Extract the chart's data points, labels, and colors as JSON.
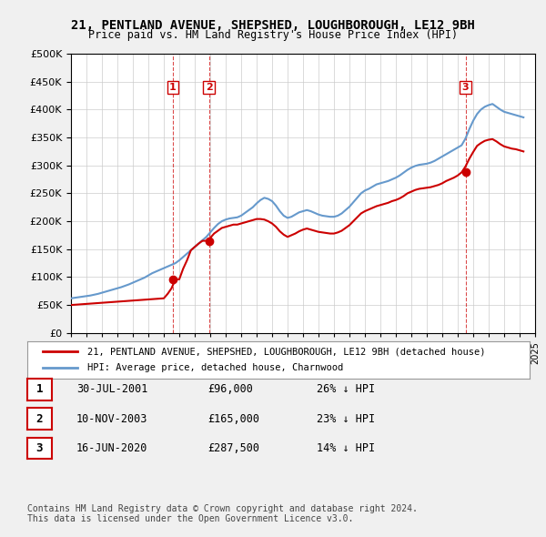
{
  "title": "21, PENTLAND AVENUE, SHEPSHED, LOUGHBOROUGH, LE12 9BH",
  "subtitle": "Price paid vs. HM Land Registry's House Price Index (HPI)",
  "ylim": [
    0,
    500000
  ],
  "yticks": [
    0,
    50000,
    100000,
    150000,
    200000,
    250000,
    300000,
    350000,
    400000,
    450000,
    500000
  ],
  "purchase_dates": [
    "2001-07-30",
    "2003-11-10",
    "2020-06-16"
  ],
  "purchase_prices": [
    96000,
    165000,
    287500
  ],
  "purchase_labels": [
    "1",
    "2",
    "3"
  ],
  "legend_line1": "21, PENTLAND AVENUE, SHEPSHED, LOUGHBOROUGH, LE12 9BH (detached house)",
  "legend_line2": "HPI: Average price, detached house, Charnwood",
  "table_data": [
    [
      "1",
      "30-JUL-2001",
      "£96,000",
      "26% ↓ HPI"
    ],
    [
      "2",
      "10-NOV-2003",
      "£165,000",
      "23% ↓ HPI"
    ],
    [
      "3",
      "16-JUN-2020",
      "£287,500",
      "14% ↓ HPI"
    ]
  ],
  "footer": "Contains HM Land Registry data © Crown copyright and database right 2024.\nThis data is licensed under the Open Government Licence v3.0.",
  "line_color_red": "#cc0000",
  "line_color_blue": "#6699cc",
  "background_color": "#f0f0f0",
  "plot_bg_color": "#ffffff",
  "grid_color": "#cccccc",
  "hpi_x": [
    1995,
    1995.25,
    1995.5,
    1995.75,
    1996,
    1996.25,
    1996.5,
    1996.75,
    1997,
    1997.25,
    1997.5,
    1997.75,
    1998,
    1998.25,
    1998.5,
    1998.75,
    1999,
    1999.25,
    1999.5,
    1999.75,
    2000,
    2000.25,
    2000.5,
    2000.75,
    2001,
    2001.25,
    2001.5,
    2001.75,
    2002,
    2002.25,
    2002.5,
    2002.75,
    2003,
    2003.25,
    2003.5,
    2003.75,
    2004,
    2004.25,
    2004.5,
    2004.75,
    2005,
    2005.25,
    2005.5,
    2005.75,
    2006,
    2006.25,
    2006.5,
    2006.75,
    2007,
    2007.25,
    2007.5,
    2007.75,
    2008,
    2008.25,
    2008.5,
    2008.75,
    2009,
    2009.25,
    2009.5,
    2009.75,
    2010,
    2010.25,
    2010.5,
    2010.75,
    2011,
    2011.25,
    2011.5,
    2011.75,
    2012,
    2012.25,
    2012.5,
    2012.75,
    2013,
    2013.25,
    2013.5,
    2013.75,
    2014,
    2014.25,
    2014.5,
    2014.75,
    2015,
    2015.25,
    2015.5,
    2015.75,
    2016,
    2016.25,
    2016.5,
    2016.75,
    2017,
    2017.25,
    2017.5,
    2017.75,
    2018,
    2018.25,
    2018.5,
    2018.75,
    2019,
    2019.25,
    2019.5,
    2019.75,
    2020,
    2020.25,
    2020.5,
    2020.75,
    2021,
    2021.25,
    2021.5,
    2021.75,
    2022,
    2022.25,
    2022.5,
    2022.75,
    2023,
    2023.25,
    2023.5,
    2023.75,
    2024,
    2024.25
  ],
  "hpi_y": [
    62000,
    63000,
    64000,
    65000,
    66000,
    67000,
    68500,
    70000,
    72000,
    74000,
    76000,
    78000,
    80000,
    82000,
    84500,
    87000,
    90000,
    93000,
    96000,
    99000,
    103000,
    107000,
    110000,
    113000,
    116000,
    119000,
    122000,
    125000,
    130000,
    136000,
    142000,
    148000,
    154000,
    160000,
    166000,
    172000,
    180000,
    188000,
    195000,
    200000,
    203000,
    205000,
    206000,
    207000,
    210000,
    215000,
    220000,
    225000,
    232000,
    238000,
    242000,
    240000,
    236000,
    228000,
    218000,
    210000,
    206000,
    208000,
    212000,
    216000,
    218000,
    220000,
    218000,
    215000,
    212000,
    210000,
    209000,
    208000,
    208000,
    210000,
    214000,
    220000,
    226000,
    234000,
    242000,
    250000,
    255000,
    258000,
    262000,
    266000,
    268000,
    270000,
    272000,
    275000,
    278000,
    282000,
    287000,
    292000,
    296000,
    299000,
    301000,
    302000,
    303000,
    305000,
    308000,
    312000,
    316000,
    320000,
    324000,
    328000,
    332000,
    336000,
    348000,
    365000,
    380000,
    392000,
    400000,
    405000,
    408000,
    410000,
    405000,
    400000,
    396000,
    394000,
    392000,
    390000,
    388000,
    386000
  ],
  "price_x": [
    1995.0,
    1995.25,
    1995.5,
    1995.75,
    1996.0,
    1996.25,
    1996.5,
    1996.75,
    1997.0,
    1997.25,
    1997.5,
    1997.75,
    1998.0,
    1998.25,
    1998.5,
    1998.75,
    1999.0,
    1999.25,
    1999.5,
    1999.75,
    2000.0,
    2000.25,
    2000.5,
    2000.75,
    2001.0,
    2001.25,
    2001.5,
    2001.75,
    2002.0,
    2002.25,
    2002.5,
    2002.75,
    2003.0,
    2003.25,
    2003.5,
    2003.75,
    2004.0,
    2004.25,
    2004.5,
    2004.75,
    2005.0,
    2005.25,
    2005.5,
    2005.75,
    2006.0,
    2006.25,
    2006.5,
    2006.75,
    2007.0,
    2007.25,
    2007.5,
    2007.75,
    2008.0,
    2008.25,
    2008.5,
    2008.75,
    2009.0,
    2009.25,
    2009.5,
    2009.75,
    2010.0,
    2010.25,
    2010.5,
    2010.75,
    2011.0,
    2011.25,
    2011.5,
    2011.75,
    2012.0,
    2012.25,
    2012.5,
    2012.75,
    2013.0,
    2013.25,
    2013.5,
    2013.75,
    2014.0,
    2014.25,
    2014.5,
    2014.75,
    2015.0,
    2015.25,
    2015.5,
    2015.75,
    2016.0,
    2016.25,
    2016.5,
    2016.75,
    2017.0,
    2017.25,
    2017.5,
    2017.75,
    2018.0,
    2018.25,
    2018.5,
    2018.75,
    2019.0,
    2019.25,
    2019.5,
    2019.75,
    2020.0,
    2020.25,
    2020.5,
    2020.75,
    2021.0,
    2021.25,
    2021.5,
    2021.75,
    2022.0,
    2022.25,
    2022.5,
    2022.75,
    2023.0,
    2023.25,
    2023.5,
    2023.75,
    2024.0,
    2024.25
  ],
  "price_y": [
    50000,
    50500,
    51000,
    51500,
    52000,
    52500,
    53000,
    53500,
    54000,
    54500,
    55000,
    55500,
    56000,
    56500,
    57000,
    57500,
    58000,
    58500,
    59000,
    59500,
    60000,
    60500,
    61000,
    61500,
    62000,
    70000,
    80000,
    96000,
    96000,
    115000,
    130000,
    148000,
    154000,
    160000,
    165000,
    165000,
    170000,
    178000,
    183000,
    188000,
    190000,
    192000,
    194000,
    194000,
    196000,
    198000,
    200000,
    202000,
    204000,
    204000,
    203000,
    200000,
    196000,
    190000,
    182000,
    176000,
    172000,
    175000,
    178000,
    182000,
    185000,
    187000,
    185000,
    183000,
    181000,
    180000,
    179000,
    178000,
    178000,
    180000,
    183000,
    188000,
    193000,
    200000,
    207000,
    214000,
    218000,
    221000,
    224000,
    227000,
    229000,
    231000,
    233000,
    236000,
    238000,
    241000,
    245000,
    250000,
    253000,
    256000,
    258000,
    259000,
    260000,
    261000,
    263000,
    265000,
    268000,
    272000,
    275000,
    278000,
    282000,
    287500,
    298000,
    312000,
    324000,
    335000,
    340000,
    344000,
    346000,
    347000,
    343000,
    338000,
    334000,
    332000,
    330000,
    329000,
    327000,
    325000
  ]
}
